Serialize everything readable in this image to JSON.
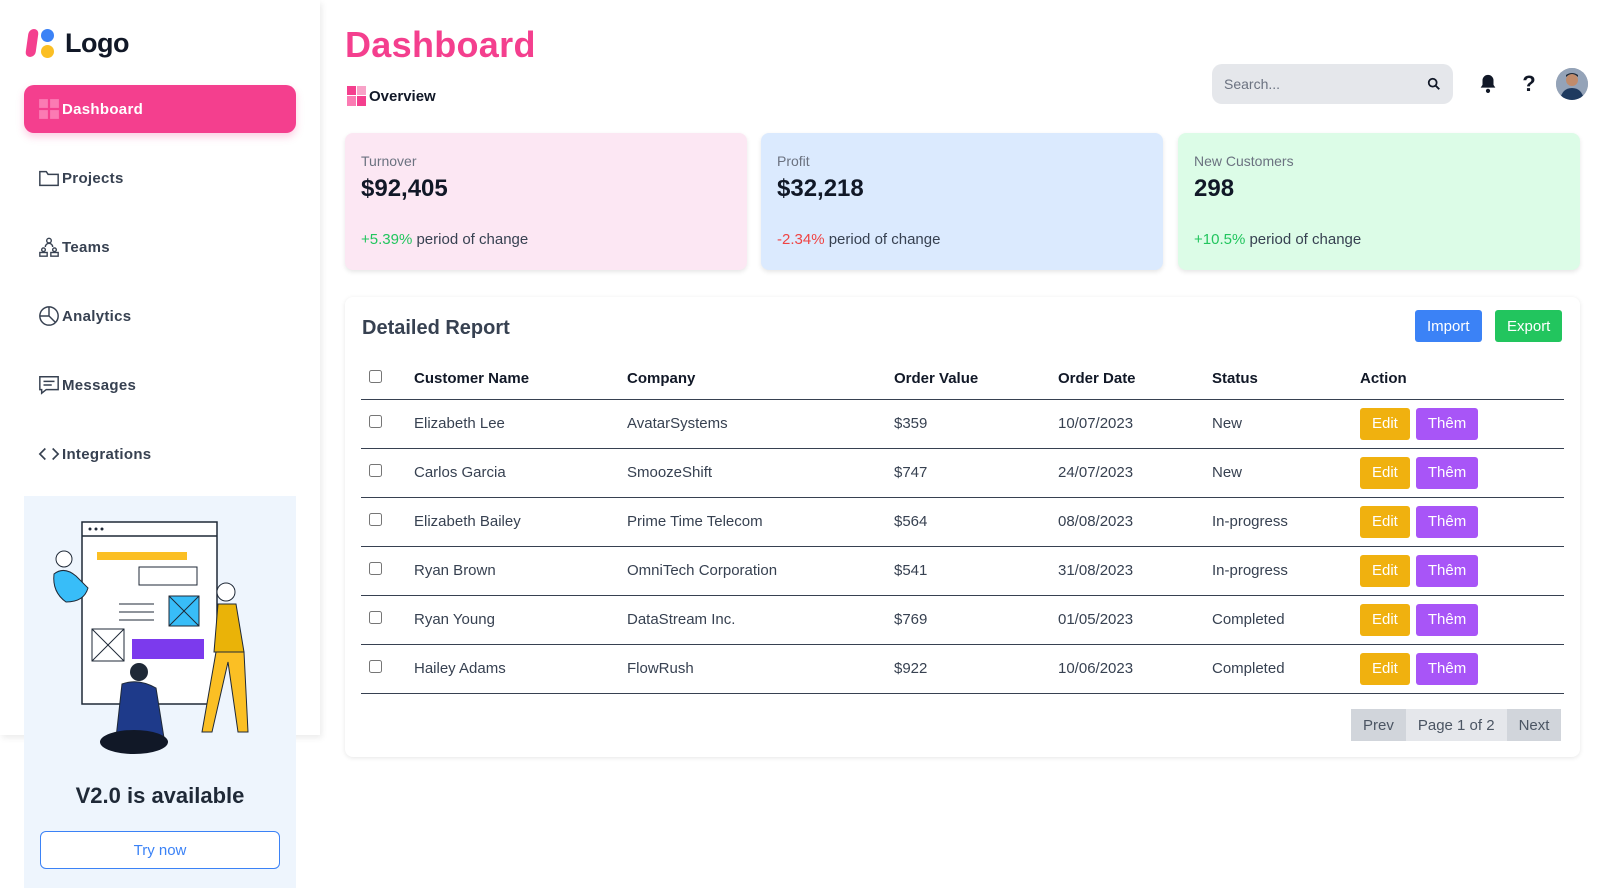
{
  "app": {
    "logo_text": "Logo"
  },
  "sidebar": {
    "items": [
      {
        "label": "Dashboard",
        "icon": "dashboard-grid-icon"
      },
      {
        "label": "Projects",
        "icon": "folder-icon"
      },
      {
        "label": "Teams",
        "icon": "team-icon"
      },
      {
        "label": "Analytics",
        "icon": "pie-chart-icon"
      },
      {
        "label": "Messages",
        "icon": "message-icon"
      },
      {
        "label": "Integrations",
        "icon": "code-icon"
      }
    ],
    "promo": {
      "title": "V2.0 is available",
      "button": "Try now"
    }
  },
  "header": {
    "title": "Dashboard",
    "breadcrumb": "Overview",
    "search_placeholder": "Search..."
  },
  "stats": [
    {
      "label": "Turnover",
      "value": "$92,405",
      "change": "+5.39%",
      "change_suffix": "period of change",
      "bg": "#fce7f3"
    },
    {
      "label": "Profit",
      "value": "$32,218",
      "change": "-2.34%",
      "change_suffix": "period of change",
      "bg": "#dbeafe"
    },
    {
      "label": "New Customers",
      "value": "298",
      "change": "+10.5%",
      "change_suffix": "period of change",
      "bg": "#dcfce7"
    }
  ],
  "report": {
    "title": "Detailed Report",
    "import_label": "Import",
    "export_label": "Export",
    "columns": [
      "Customer Name",
      "Company",
      "Order Value",
      "Order Date",
      "Status",
      "Action"
    ],
    "rows": [
      {
        "name": "Elizabeth Lee",
        "company": "AvatarSystems",
        "value": "$359",
        "date": "10/07/2023",
        "status": "New"
      },
      {
        "name": "Carlos Garcia",
        "company": "SmoozeShift",
        "value": "$747",
        "date": "24/07/2023",
        "status": "New"
      },
      {
        "name": "Elizabeth Bailey",
        "company": "Prime Time Telecom",
        "value": "$564",
        "date": "08/08/2023",
        "status": "In-progress"
      },
      {
        "name": "Ryan Brown",
        "company": "OmniTech Corporation",
        "value": "$541",
        "date": "31/08/2023",
        "status": "In-progress"
      },
      {
        "name": "Ryan Young",
        "company": "DataStream Inc.",
        "value": "$769",
        "date": "01/05/2023",
        "status": "Completed"
      },
      {
        "name": "Hailey Adams",
        "company": "FlowRush",
        "value": "$922",
        "date": "10/06/2023",
        "status": "Completed"
      }
    ],
    "edit_label": "Edit",
    "more_label": "Thêm",
    "pager": {
      "prev": "Prev",
      "info": "Page 1 of 2",
      "next": "Next"
    }
  }
}
